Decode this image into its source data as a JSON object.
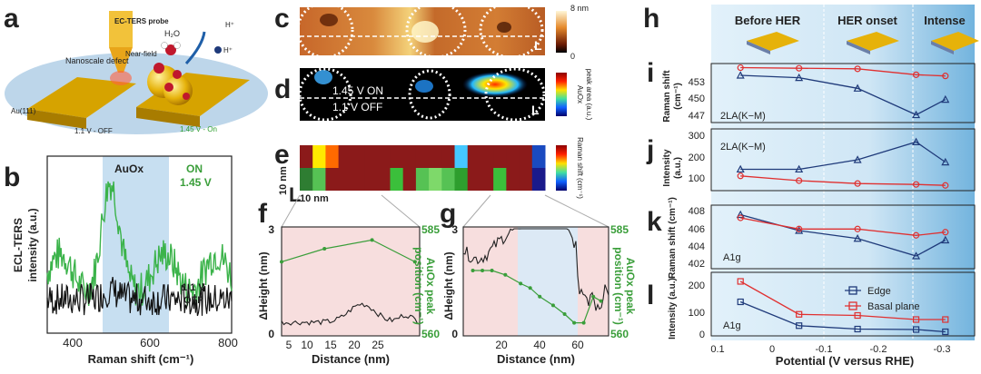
{
  "panel_labels": {
    "a": "a",
    "b": "b",
    "c": "c",
    "d": "d",
    "e": "e",
    "f": "f",
    "g": "g",
    "h": "h",
    "i": "i",
    "j": "j",
    "k": "k",
    "l": "l"
  },
  "panel_a": {
    "probe": "EC-TERS probe",
    "near_field": "Near-field",
    "defect": "Nanoscale defect",
    "au": "Au(111)",
    "off": "1.1 V - OFF",
    "on": "1.45 V - On",
    "h2o": "H₂O",
    "h_plus1": "H⁺",
    "h_plus2": "H⁺"
  },
  "panel_b": {
    "ylabel_1": "ECL-TERS",
    "ylabel_2": "intensity (a.u.)",
    "xlabel": "Raman shift (cm⁻¹)",
    "band": "AuOx",
    "on_label_1": "ON",
    "on_label_2": "1.45 V",
    "off_label_1": "1.1 V",
    "off_label_2": "OFF",
    "xticks": [
      "400",
      "600",
      "800"
    ]
  },
  "panel_c": {
    "scale_max": "8 nm",
    "scale_min": "0",
    "scalebar": "L"
  },
  "panel_d": {
    "on": "1.45 V ON",
    "off": "1.1 V OFF",
    "cb_1": "AuOx",
    "cb_2": "peak area (a.u.)",
    "scalebar": "L"
  },
  "panel_e": {
    "cb_1": "Raman shift (cm⁻¹)",
    "scale_v": "10 nm",
    "scale_h": "10 nm",
    "scalebar": "L"
  },
  "panel_f": {
    "ylabel": "ΔHeight (nm)",
    "y2_1": "AuOx peak",
    "y2_2": "position (cm⁻¹)",
    "xlabel": "Distance (nm)",
    "xticks": [
      "10",
      "15",
      "20",
      "25"
    ],
    "first_tick": "5",
    "y_top": "3",
    "y_bot": "0",
    "y2_top": "585",
    "y2_bot": "560"
  },
  "panel_g": {
    "ylabel": "ΔHeight (nm)",
    "y2_1": "AuOx peak",
    "y2_2": "position (cm⁻¹)",
    "xlabel": "Distance (nm)",
    "xticks": [
      "20",
      "40",
      "60"
    ],
    "y_top": "3",
    "y_bot": "0",
    "y2_top": "585",
    "y2_bot": "560"
  },
  "panel_h": {
    "before": "Before HER",
    "onset": "HER onset",
    "intense": "Intense"
  },
  "panel_i": {
    "ylabel_1": "Raman shift",
    "ylabel_2": "(cm⁻¹)",
    "mode": "2LA(K−M)",
    "yticks": [
      "453",
      "450",
      "447"
    ]
  },
  "panel_j": {
    "ylabel_1": "Intensity",
    "ylabel_2": "(a.u.)",
    "mode": "2LA(K−M)",
    "yticks": [
      "300",
      "200",
      "100"
    ]
  },
  "panel_k": {
    "ylabel": "Raman shift (cm⁻¹)",
    "mode": "A1g",
    "yticks": [
      "408",
      "406",
      "404",
      "402"
    ]
  },
  "panel_l": {
    "ylabel": "Intensity (a.u.)",
    "mode": "A1g",
    "yticks": [
      "200",
      "100",
      "0"
    ],
    "legend_edge": "Edge",
    "legend_basal": "Basal plane"
  },
  "shared_x": {
    "label": "Potential (V versus RHE)",
    "ticks": [
      "0.1",
      "0",
      "-0.1",
      "-0.2",
      "-0.3"
    ]
  },
  "colors": {
    "edge": "#1f3a7a",
    "basal": "#e03030",
    "green": "#3a9e3a",
    "band": "#bcd7ee",
    "pink": "#f6dada"
  },
  "chart_data": [
    {
      "type": "line",
      "panel": "i",
      "x": [
        0.05,
        -0.05,
        -0.15,
        -0.25,
        -0.3
      ],
      "series": [
        {
          "name": "Edge",
          "values": [
            453.5,
            453.1,
            451.3,
            446.8,
            449.4
          ]
        },
        {
          "name": "Basal plane",
          "values": [
            454.8,
            454.7,
            454.6,
            453.6,
            453.4
          ]
        }
      ],
      "xlim": [
        0.1,
        -0.35
      ],
      "ylim": [
        445.5,
        455.5
      ]
    },
    {
      "type": "line",
      "panel": "j",
      "x": [
        0.05,
        -0.05,
        -0.15,
        -0.25,
        -0.3
      ],
      "series": [
        {
          "name": "Edge",
          "values": [
            140,
            140,
            180,
            255,
            170
          ]
        },
        {
          "name": "Basal plane",
          "values": [
            112,
            92,
            80,
            76,
            72
          ]
        }
      ],
      "xlim": [
        0.1,
        -0.35
      ],
      "ylim": [
        50,
        310
      ]
    },
    {
      "type": "line",
      "panel": "k",
      "x": [
        0.05,
        -0.05,
        -0.15,
        -0.25,
        -0.3
      ],
      "series": [
        {
          "name": "Edge",
          "values": [
            407.8,
            405.8,
            404.8,
            402.6,
            404.6
          ]
        },
        {
          "name": "Basal plane",
          "values": [
            407.4,
            406.0,
            406.0,
            405.2,
            405.6
          ]
        }
      ],
      "xlim": [
        0.1,
        -0.35
      ],
      "ylim": [
        401,
        409
      ]
    },
    {
      "type": "line",
      "panel": "l",
      "x": [
        0.05,
        -0.05,
        -0.15,
        -0.25,
        -0.3
      ],
      "series": [
        {
          "name": "Edge",
          "values": [
            150,
            45,
            30,
            28,
            18
          ]
        },
        {
          "name": "Basal plane",
          "values": [
            240,
            95,
            90,
            72,
            72
          ]
        }
      ],
      "xlim": [
        0.1,
        -0.35
      ],
      "ylim": [
        0,
        280
      ]
    },
    {
      "type": "line",
      "panel": "f",
      "x": [
        0,
        9,
        19,
        28
      ],
      "series": [
        {
          "values": [
            577,
            580,
            582,
            577
          ]
        }
      ],
      "xlim": [
        0,
        29
      ],
      "ylim": [
        560,
        585
      ]
    },
    {
      "type": "line",
      "panel": "g",
      "x": [
        5,
        10,
        15,
        22,
        30,
        35,
        40,
        47,
        53,
        58,
        63,
        68,
        72
      ],
      "series": [
        {
          "values": [
            575,
            575,
            575,
            574,
            572,
            571,
            569,
            567,
            565,
            563,
            563,
            569,
            568
          ]
        }
      ],
      "xlim": [
        0,
        76
      ],
      "ylim": [
        560,
        585
      ]
    }
  ]
}
